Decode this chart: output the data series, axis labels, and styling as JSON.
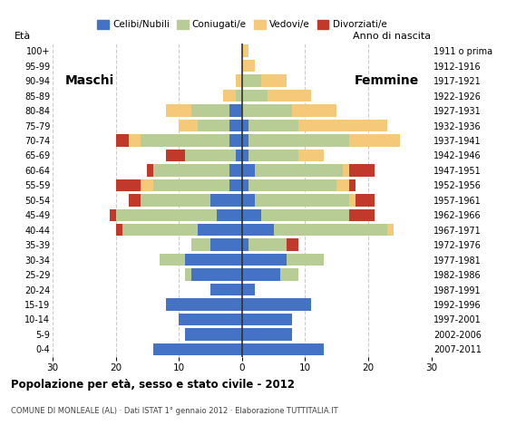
{
  "age_groups": [
    "0-4",
    "5-9",
    "10-14",
    "15-19",
    "20-24",
    "25-29",
    "30-34",
    "35-39",
    "40-44",
    "45-49",
    "50-54",
    "55-59",
    "60-64",
    "65-69",
    "70-74",
    "75-79",
    "80-84",
    "85-89",
    "90-94",
    "95-99",
    "100+"
  ],
  "birth_years": [
    "2007-2011",
    "2002-2006",
    "1997-2001",
    "1992-1996",
    "1987-1991",
    "1982-1986",
    "1977-1981",
    "1972-1976",
    "1967-1971",
    "1962-1966",
    "1957-1961",
    "1952-1956",
    "1947-1951",
    "1942-1946",
    "1937-1941",
    "1932-1936",
    "1927-1931",
    "1922-1926",
    "1917-1921",
    "1912-1916",
    "1911 o prima"
  ],
  "colors": {
    "celibe": "#4472c4",
    "coniugato": "#b8cc96",
    "vedovo": "#f5c97a",
    "divorziato": "#c0392b"
  },
  "males": {
    "celibe": [
      14,
      9,
      10,
      12,
      5,
      8,
      9,
      5,
      7,
      4,
      5,
      2,
      2,
      1,
      2,
      2,
      2,
      0,
      0,
      0,
      0
    ],
    "coniugato": [
      0,
      0,
      0,
      0,
      0,
      1,
      4,
      3,
      12,
      16,
      11,
      12,
      12,
      8,
      14,
      5,
      6,
      1,
      0,
      0,
      0
    ],
    "vedovo": [
      0,
      0,
      0,
      0,
      0,
      0,
      0,
      0,
      0,
      0,
      0,
      2,
      0,
      0,
      2,
      3,
      4,
      2,
      1,
      0,
      0
    ],
    "divorziato": [
      0,
      0,
      0,
      0,
      0,
      0,
      0,
      0,
      1,
      1,
      2,
      4,
      1,
      3,
      2,
      0,
      0,
      0,
      0,
      0,
      0
    ]
  },
  "females": {
    "celibe": [
      13,
      8,
      8,
      11,
      2,
      6,
      7,
      1,
      5,
      3,
      2,
      1,
      2,
      1,
      1,
      1,
      0,
      0,
      0,
      0,
      0
    ],
    "coniugato": [
      0,
      0,
      0,
      0,
      0,
      3,
      6,
      6,
      18,
      14,
      15,
      14,
      14,
      8,
      16,
      8,
      8,
      4,
      3,
      0,
      0
    ],
    "vedovo": [
      0,
      0,
      0,
      0,
      0,
      0,
      0,
      0,
      1,
      0,
      1,
      2,
      1,
      4,
      8,
      14,
      7,
      7,
      4,
      2,
      1
    ],
    "divorziato": [
      0,
      0,
      0,
      0,
      0,
      0,
      0,
      2,
      0,
      4,
      3,
      1,
      4,
      0,
      0,
      0,
      0,
      0,
      0,
      0,
      0
    ]
  },
  "xlim": 30,
  "title": "Popolazione per età, sesso e stato civile - 2012",
  "subtitle": "COMUNE DI MONLEALE (AL) · Dati ISTAT 1° gennaio 2012 · Elaborazione TUTTITALIA.IT",
  "xlabel_left": "Maschi",
  "xlabel_right": "Femmine",
  "ylabel": "Età",
  "ylabel_right": "Anno di nascita",
  "legend_labels": [
    "Celibi/Nubili",
    "Coniugati/e",
    "Vedovi/e",
    "Divorziati/e"
  ],
  "bg_color": "#ffffff",
  "grid_color": "#aaaaaa"
}
